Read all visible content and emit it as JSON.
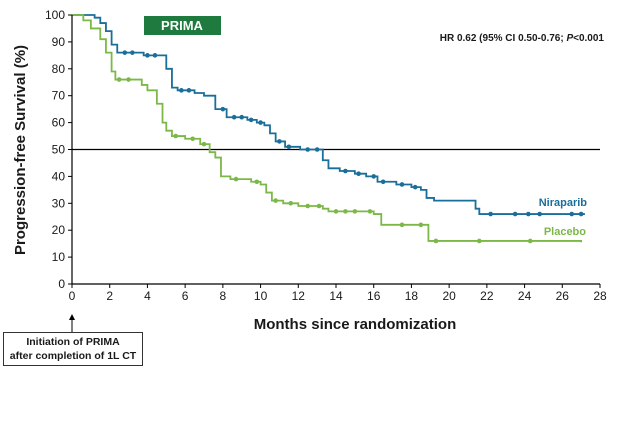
{
  "chart_data": {
    "type": "line",
    "badge": "PRIMA",
    "annotation_hr": {
      "prefix": "HR 0.62 (95% CI 0.50-0.76; ",
      "p_italic": "P",
      "suffix": "<0.001"
    },
    "xlabel": "Months since randomization",
    "ylabel": "Progression-free Survival (%)",
    "xlim": [
      0,
      28
    ],
    "ylim": [
      0,
      100
    ],
    "xticks": [
      0,
      2,
      4,
      6,
      8,
      10,
      12,
      14,
      16,
      18,
      20,
      22,
      24,
      26,
      28
    ],
    "yticks": [
      0,
      10,
      20,
      30,
      40,
      50,
      60,
      70,
      80,
      90,
      100
    ],
    "reference_line_y": 50,
    "series": [
      {
        "name": "Niraparib",
        "color": "#1a6e9a",
        "points": [
          [
            0,
            100
          ],
          [
            0.6,
            100
          ],
          [
            1.2,
            99
          ],
          [
            1.5,
            97
          ],
          [
            1.8,
            94
          ],
          [
            2.1,
            89
          ],
          [
            2.4,
            86
          ],
          [
            3.5,
            86
          ],
          [
            3.8,
            85
          ],
          [
            4.8,
            85
          ],
          [
            5.0,
            80
          ],
          [
            5.3,
            73
          ],
          [
            5.6,
            72
          ],
          [
            6.5,
            71
          ],
          [
            7.0,
            70
          ],
          [
            7.6,
            65
          ],
          [
            8.2,
            62
          ],
          [
            9.3,
            61
          ],
          [
            9.8,
            60
          ],
          [
            10.2,
            59
          ],
          [
            10.5,
            56
          ],
          [
            10.8,
            53
          ],
          [
            11.3,
            51
          ],
          [
            12.1,
            50
          ],
          [
            13.0,
            50
          ],
          [
            13.3,
            46
          ],
          [
            13.6,
            43
          ],
          [
            14.2,
            42
          ],
          [
            15.0,
            41
          ],
          [
            15.6,
            40
          ],
          [
            16.2,
            38
          ],
          [
            17.2,
            37
          ],
          [
            18.0,
            36
          ],
          [
            18.5,
            35
          ],
          [
            18.8,
            32
          ],
          [
            19.2,
            31
          ],
          [
            20.5,
            31
          ],
          [
            21.4,
            28
          ],
          [
            21.6,
            26
          ],
          [
            22.5,
            26
          ],
          [
            23.0,
            26
          ],
          [
            25.0,
            26
          ],
          [
            27.2,
            26
          ]
        ],
        "censor_x": [
          2.8,
          3.2,
          4.0,
          4.4,
          5.8,
          6.2,
          8.0,
          8.6,
          9.0,
          9.5,
          10.0,
          11.0,
          11.5,
          12.5,
          13.0,
          14.5,
          15.2,
          16.0,
          16.5,
          17.5,
          18.2,
          22.2,
          23.5,
          24.2,
          24.8,
          26.5,
          27.0
        ]
      },
      {
        "name": "Placebo",
        "color": "#7cb848",
        "points": [
          [
            0,
            100
          ],
          [
            0.6,
            98
          ],
          [
            1.0,
            95
          ],
          [
            1.5,
            91
          ],
          [
            1.8,
            86
          ],
          [
            2.1,
            79
          ],
          [
            2.3,
            76
          ],
          [
            3.5,
            76
          ],
          [
            3.7,
            74
          ],
          [
            4.0,
            72
          ],
          [
            4.5,
            67
          ],
          [
            4.8,
            60
          ],
          [
            5.0,
            57
          ],
          [
            5.3,
            55
          ],
          [
            6.0,
            54
          ],
          [
            6.8,
            52
          ],
          [
            7.3,
            49
          ],
          [
            7.6,
            47
          ],
          [
            7.9,
            40
          ],
          [
            8.4,
            39
          ],
          [
            9.5,
            38
          ],
          [
            10.0,
            37
          ],
          [
            10.3,
            34
          ],
          [
            10.6,
            31
          ],
          [
            11.2,
            30
          ],
          [
            12.0,
            29
          ],
          [
            13.0,
            29
          ],
          [
            13.3,
            28
          ],
          [
            13.6,
            27
          ],
          [
            14.8,
            27
          ],
          [
            16.0,
            26
          ],
          [
            16.4,
            22
          ],
          [
            17.0,
            22
          ],
          [
            18.8,
            22
          ],
          [
            18.9,
            16
          ],
          [
            19.5,
            16
          ],
          [
            21.6,
            16
          ],
          [
            24.3,
            16
          ],
          [
            27.0,
            15.5
          ]
        ],
        "censor_x": [
          2.5,
          3.0,
          5.5,
          6.4,
          7.0,
          8.7,
          9.8,
          10.8,
          11.6,
          12.5,
          13.1,
          14.0,
          14.5,
          15.0,
          15.8,
          17.5,
          18.5,
          19.3,
          21.6,
          24.3
        ]
      }
    ],
    "series_labels": [
      {
        "text": "Niraparib"
      },
      {
        "text": "Placebo"
      }
    ]
  },
  "note_box": {
    "line1": "Initiation of PRIMA",
    "line2": "after completion of 1L CT"
  }
}
